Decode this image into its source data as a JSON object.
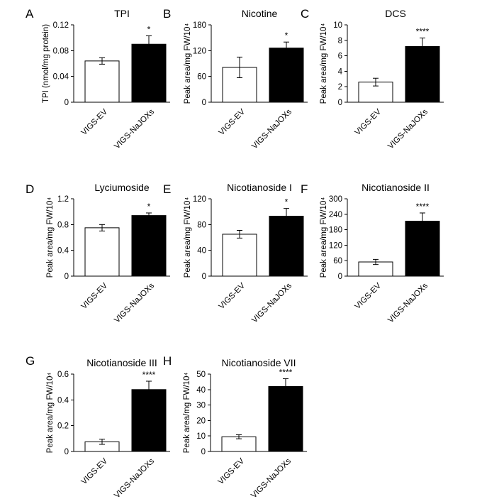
{
  "figure": {
    "panels": [
      "A",
      "B",
      "C",
      "D",
      "E",
      "F",
      "G",
      "H"
    ]
  },
  "chart_data": [
    {
      "panel": "A",
      "type": "bar",
      "title": "TPI",
      "ylabel": "TPI (nmol/mg protein)",
      "categories": [
        "VIGS-EV",
        "VIGS-NaJOXs"
      ],
      "values": [
        0.064,
        0.09
      ],
      "errors": [
        0.005,
        0.013
      ],
      "colors": [
        "#ffffff",
        "#000000"
      ],
      "significance": [
        "",
        "*"
      ],
      "ylim": [
        0,
        0.12
      ],
      "yticks": [
        "0",
        "0.04",
        "0.08",
        "0.12"
      ]
    },
    {
      "panel": "B",
      "type": "bar",
      "title": "Nicotine",
      "ylabel": "Peak area/mg FW/10⁴",
      "categories": [
        "VIGS-EV",
        "VIGS-NaJOXs"
      ],
      "values": [
        81,
        126
      ],
      "errors": [
        24,
        14
      ],
      "colors": [
        "#ffffff",
        "#000000"
      ],
      "significance": [
        "",
        "*"
      ],
      "ylim": [
        0,
        180
      ],
      "yticks": [
        "0",
        "60",
        "120",
        "180"
      ]
    },
    {
      "panel": "C",
      "type": "bar",
      "title": "DCS",
      "ylabel": "Peak area/mg FW/10⁴",
      "categories": [
        "VIGS-EV",
        "VIGS-NaJOXs"
      ],
      "values": [
        2.6,
        7.2
      ],
      "errors": [
        0.5,
        1.1
      ],
      "colors": [
        "#ffffff",
        "#000000"
      ],
      "significance": [
        "",
        "****"
      ],
      "ylim": [
        0,
        10
      ],
      "yticks": [
        "0",
        "2",
        "4",
        "6",
        "8",
        "10"
      ]
    },
    {
      "panel": "D",
      "type": "bar",
      "title": "Lyciumoside",
      "ylabel": "Peak area/mg FW/10⁴",
      "categories": [
        "VIGS-EV",
        "VIGS-NaJOXs"
      ],
      "values": [
        0.75,
        0.94
      ],
      "errors": [
        0.05,
        0.04
      ],
      "colors": [
        "#ffffff",
        "#000000"
      ],
      "significance": [
        "",
        "*"
      ],
      "ylim": [
        0,
        1.2
      ],
      "yticks": [
        "0",
        "0.4",
        "0.8",
        "1.2"
      ]
    },
    {
      "panel": "E",
      "type": "bar",
      "title": "Nicotianoside I",
      "ylabel": "Peak area/mg FW/10⁴",
      "categories": [
        "VIGS-EV",
        "VIGS-NaJOXs"
      ],
      "values": [
        65,
        93
      ],
      "errors": [
        6,
        12
      ],
      "colors": [
        "#ffffff",
        "#000000"
      ],
      "significance": [
        "",
        "*"
      ],
      "ylim": [
        0,
        120
      ],
      "yticks": [
        "0",
        "40",
        "80",
        "120"
      ]
    },
    {
      "panel": "F",
      "type": "bar",
      "title": "Nicotianoside II",
      "ylabel": "Peak area/mg FW/10⁴",
      "categories": [
        "VIGS-EV",
        "VIGS-NaJOXs"
      ],
      "values": [
        55,
        213
      ],
      "errors": [
        10,
        32
      ],
      "colors": [
        "#ffffff",
        "#000000"
      ],
      "significance": [
        "",
        "****"
      ],
      "ylim": [
        0,
        300
      ],
      "yticks": [
        "0",
        "60",
        "120",
        "180",
        "240",
        "300"
      ]
    },
    {
      "panel": "G",
      "type": "bar",
      "title": "Nicotianoside III",
      "ylabel": "Peak area/mg FW/10⁴",
      "categories": [
        "VIGS-EV",
        "VIGS-NaJOXs"
      ],
      "values": [
        0.075,
        0.48
      ],
      "errors": [
        0.02,
        0.065
      ],
      "colors": [
        "#ffffff",
        "#000000"
      ],
      "significance": [
        "",
        "****"
      ],
      "ylim": [
        0,
        0.6
      ],
      "yticks": [
        "0",
        "0.2",
        "0.4",
        "0.6"
      ]
    },
    {
      "panel": "H",
      "type": "bar",
      "title": "Nicotianoside VII",
      "ylabel": "Peak area/mg FW/10⁴",
      "categories": [
        "VIGS-EV",
        "VIGS-NaJOXs"
      ],
      "values": [
        9.5,
        42
      ],
      "errors": [
        1.3,
        5
      ],
      "colors": [
        "#ffffff",
        "#000000"
      ],
      "significance": [
        "",
        "****"
      ],
      "ylim": [
        0,
        50
      ],
      "yticks": [
        "0",
        "10",
        "20",
        "30",
        "40",
        "50"
      ]
    }
  ]
}
